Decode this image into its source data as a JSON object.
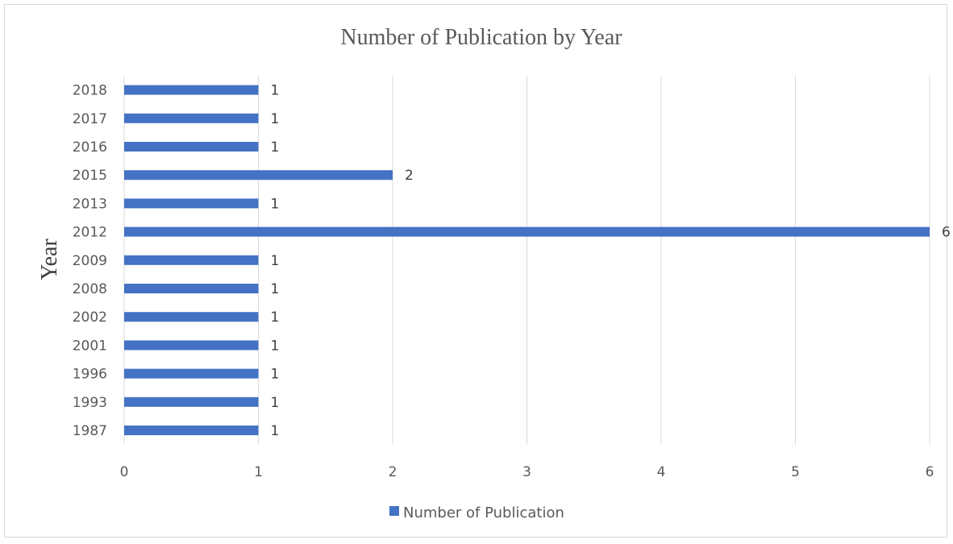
{
  "chart_data": {
    "type": "bar",
    "orientation": "horizontal",
    "title": "Number of Publication by Year",
    "xlabel": "",
    "ylabel": "Year",
    "categories": [
      "2018",
      "2017",
      "2016",
      "2015",
      "2013",
      "2012",
      "2009",
      "2008",
      "2002",
      "2001",
      "1996",
      "1993",
      "1987"
    ],
    "series": [
      {
        "name": "Number of Publication",
        "values": [
          1,
          1,
          1,
          2,
          1,
          6,
          1,
          1,
          1,
          1,
          1,
          1,
          1
        ],
        "color": "#4472c4"
      }
    ],
    "xlim": [
      0,
      6
    ],
    "xticks": [
      "0",
      "1",
      "2",
      "3",
      "4",
      "5",
      "6"
    ],
    "grid": "vertical",
    "legend_position": "bottom",
    "data_labels": true
  }
}
